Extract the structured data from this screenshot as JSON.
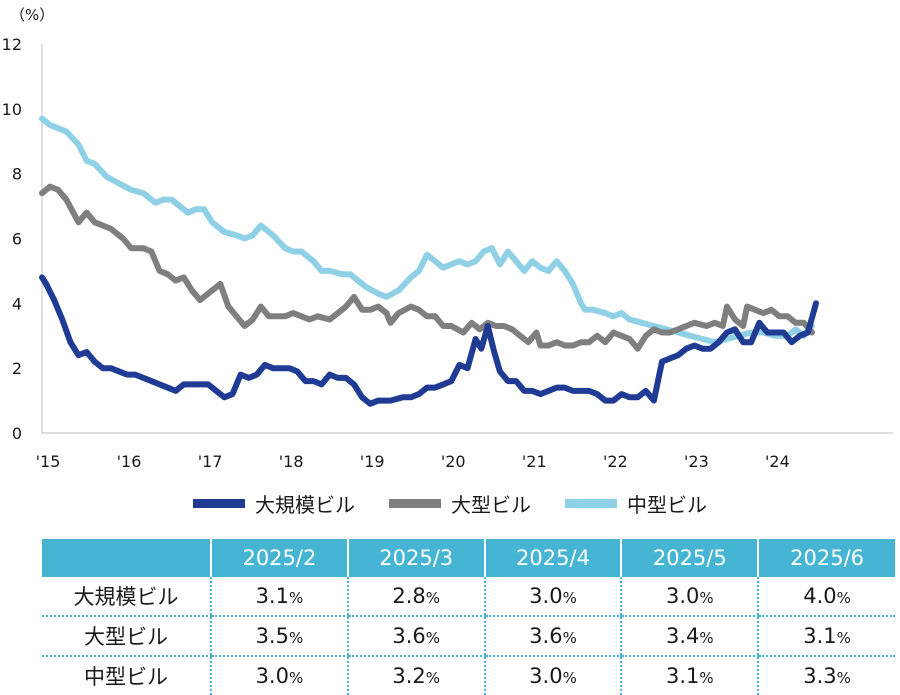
{
  "chart_data": {
    "type": "line",
    "unit_label": "（%）",
    "ylim": [
      0,
      12
    ],
    "yticks": [
      "0",
      "2",
      "4",
      "6",
      "8",
      "10",
      "12"
    ],
    "xlim": [
      2015.0,
      2025.5
    ],
    "xticks": [
      {
        "x": 2015,
        "label": "'15"
      },
      {
        "x": 2016,
        "label": "'16"
      },
      {
        "x": 2017,
        "label": "'17"
      },
      {
        "x": 2018,
        "label": "'18"
      },
      {
        "x": 2019,
        "label": "'19"
      },
      {
        "x": 2020,
        "label": "'20"
      },
      {
        "x": 2021,
        "label": "'21"
      },
      {
        "x": 2022,
        "label": "'22"
      },
      {
        "x": 2023,
        "label": "'23"
      },
      {
        "x": 2024,
        "label": "'24"
      }
    ],
    "series": [
      {
        "name": "中型ビル",
        "color": "#8fd0e6",
        "points": [
          [
            2015.0,
            9.7
          ],
          [
            2015.1,
            9.5
          ],
          [
            2015.3,
            9.3
          ],
          [
            2015.45,
            8.9
          ],
          [
            2015.55,
            8.4
          ],
          [
            2015.65,
            8.3
          ],
          [
            2015.8,
            7.9
          ],
          [
            2015.95,
            7.7
          ],
          [
            2016.1,
            7.5
          ],
          [
            2016.25,
            7.4
          ],
          [
            2016.4,
            7.1
          ],
          [
            2016.5,
            7.2
          ],
          [
            2016.6,
            7.2
          ],
          [
            2016.7,
            7.0
          ],
          [
            2016.8,
            6.8
          ],
          [
            2016.9,
            6.9
          ],
          [
            2017.0,
            6.9
          ],
          [
            2017.1,
            6.5
          ],
          [
            2017.25,
            6.2
          ],
          [
            2017.4,
            6.1
          ],
          [
            2017.5,
            6.0
          ],
          [
            2017.6,
            6.1
          ],
          [
            2017.7,
            6.4
          ],
          [
            2017.85,
            6.1
          ],
          [
            2018.0,
            5.7
          ],
          [
            2018.1,
            5.6
          ],
          [
            2018.2,
            5.6
          ],
          [
            2018.35,
            5.3
          ],
          [
            2018.45,
            5.0
          ],
          [
            2018.55,
            5.0
          ],
          [
            2018.7,
            4.9
          ],
          [
            2018.8,
            4.9
          ],
          [
            2018.9,
            4.7
          ],
          [
            2019.0,
            4.5
          ],
          [
            2019.15,
            4.3
          ],
          [
            2019.25,
            4.2
          ],
          [
            2019.4,
            4.4
          ],
          [
            2019.55,
            4.8
          ],
          [
            2019.65,
            5.0
          ],
          [
            2019.75,
            5.5
          ],
          [
            2019.85,
            5.3
          ],
          [
            2019.95,
            5.1
          ],
          [
            2020.05,
            5.2
          ],
          [
            2020.15,
            5.3
          ],
          [
            2020.25,
            5.2
          ],
          [
            2020.35,
            5.3
          ],
          [
            2020.45,
            5.6
          ],
          [
            2020.55,
            5.7
          ],
          [
            2020.65,
            5.2
          ],
          [
            2020.75,
            5.6
          ],
          [
            2020.85,
            5.3
          ],
          [
            2020.95,
            5.0
          ],
          [
            2021.05,
            5.3
          ],
          [
            2021.15,
            5.1
          ],
          [
            2021.25,
            5.0
          ],
          [
            2021.35,
            5.3
          ],
          [
            2021.45,
            5.0
          ],
          [
            2021.55,
            4.6
          ],
          [
            2021.65,
            4.0
          ],
          [
            2021.7,
            3.8
          ],
          [
            2021.8,
            3.8
          ],
          [
            2021.95,
            3.7
          ],
          [
            2022.05,
            3.6
          ],
          [
            2022.15,
            3.7
          ],
          [
            2022.25,
            3.5
          ],
          [
            2022.4,
            3.4
          ],
          [
            2022.55,
            3.3
          ],
          [
            2022.7,
            3.2
          ],
          [
            2022.85,
            3.1
          ],
          [
            2023.0,
            3.0
          ],
          [
            2023.15,
            2.9
          ],
          [
            2023.3,
            2.8
          ],
          [
            2023.45,
            2.9
          ],
          [
            2023.6,
            3.0
          ],
          [
            2023.75,
            3.1
          ],
          [
            2023.9,
            3.1
          ],
          [
            2024.05,
            3.0
          ],
          [
            2024.2,
            3.0
          ],
          [
            2024.3,
            3.2
          ],
          [
            2024.4,
            3.0
          ],
          [
            2024.5,
            3.3
          ]
        ]
      },
      {
        "name": "大型ビル",
        "color": "#7f7f7f",
        "points": [
          [
            2015.0,
            7.4
          ],
          [
            2015.1,
            7.6
          ],
          [
            2015.2,
            7.5
          ],
          [
            2015.3,
            7.2
          ],
          [
            2015.45,
            6.5
          ],
          [
            2015.55,
            6.8
          ],
          [
            2015.65,
            6.5
          ],
          [
            2015.75,
            6.4
          ],
          [
            2015.85,
            6.3
          ],
          [
            2016.0,
            6.0
          ],
          [
            2016.1,
            5.7
          ],
          [
            2016.25,
            5.7
          ],
          [
            2016.35,
            5.6
          ],
          [
            2016.45,
            5.0
          ],
          [
            2016.55,
            4.9
          ],
          [
            2016.65,
            4.7
          ],
          [
            2016.75,
            4.8
          ],
          [
            2016.85,
            4.4
          ],
          [
            2016.95,
            4.1
          ],
          [
            2017.05,
            4.3
          ],
          [
            2017.15,
            4.5
          ],
          [
            2017.2,
            4.6
          ],
          [
            2017.3,
            3.9
          ],
          [
            2017.4,
            3.6
          ],
          [
            2017.5,
            3.3
          ],
          [
            2017.6,
            3.5
          ],
          [
            2017.7,
            3.9
          ],
          [
            2017.8,
            3.6
          ],
          [
            2017.9,
            3.6
          ],
          [
            2018.0,
            3.6
          ],
          [
            2018.1,
            3.7
          ],
          [
            2018.2,
            3.6
          ],
          [
            2018.3,
            3.5
          ],
          [
            2018.4,
            3.6
          ],
          [
            2018.55,
            3.5
          ],
          [
            2018.65,
            3.7
          ],
          [
            2018.75,
            3.9
          ],
          [
            2018.85,
            4.2
          ],
          [
            2018.95,
            3.8
          ],
          [
            2019.05,
            3.8
          ],
          [
            2019.15,
            3.9
          ],
          [
            2019.25,
            3.7
          ],
          [
            2019.3,
            3.4
          ],
          [
            2019.4,
            3.7
          ],
          [
            2019.55,
            3.9
          ],
          [
            2019.65,
            3.8
          ],
          [
            2019.75,
            3.6
          ],
          [
            2019.85,
            3.6
          ],
          [
            2019.95,
            3.3
          ],
          [
            2020.05,
            3.3
          ],
          [
            2020.2,
            3.1
          ],
          [
            2020.3,
            3.4
          ],
          [
            2020.4,
            3.2
          ],
          [
            2020.5,
            3.4
          ],
          [
            2020.6,
            3.3
          ],
          [
            2020.7,
            3.3
          ],
          [
            2020.8,
            3.2
          ],
          [
            2020.9,
            3.0
          ],
          [
            2021.0,
            2.8
          ],
          [
            2021.1,
            3.1
          ],
          [
            2021.15,
            2.7
          ],
          [
            2021.25,
            2.7
          ],
          [
            2021.35,
            2.8
          ],
          [
            2021.45,
            2.7
          ],
          [
            2021.55,
            2.7
          ],
          [
            2021.65,
            2.8
          ],
          [
            2021.75,
            2.8
          ],
          [
            2021.85,
            3.0
          ],
          [
            2021.95,
            2.8
          ],
          [
            2022.05,
            3.1
          ],
          [
            2022.15,
            3.0
          ],
          [
            2022.25,
            2.9
          ],
          [
            2022.35,
            2.6
          ],
          [
            2022.45,
            3.0
          ],
          [
            2022.55,
            3.2
          ],
          [
            2022.65,
            3.1
          ],
          [
            2022.75,
            3.1
          ],
          [
            2022.85,
            3.2
          ],
          [
            2022.95,
            3.3
          ],
          [
            2023.05,
            3.4
          ],
          [
            2023.2,
            3.3
          ],
          [
            2023.3,
            3.4
          ],
          [
            2023.4,
            3.3
          ],
          [
            2023.45,
            3.9
          ],
          [
            2023.55,
            3.5
          ],
          [
            2023.65,
            3.3
          ],
          [
            2023.7,
            3.9
          ],
          [
            2023.8,
            3.8
          ],
          [
            2023.9,
            3.7
          ],
          [
            2024.0,
            3.8
          ],
          [
            2024.1,
            3.6
          ],
          [
            2024.2,
            3.6
          ],
          [
            2024.3,
            3.4
          ],
          [
            2024.4,
            3.4
          ],
          [
            2024.5,
            3.1
          ]
        ]
      },
      {
        "name": "大規模ビル",
        "color": "#1f3b93",
        "points": [
          [
            2015.0,
            4.8
          ],
          [
            2015.05,
            4.6
          ],
          [
            2015.15,
            4.1
          ],
          [
            2015.25,
            3.5
          ],
          [
            2015.35,
            2.8
          ],
          [
            2015.45,
            2.4
          ],
          [
            2015.55,
            2.5
          ],
          [
            2015.65,
            2.2
          ],
          [
            2015.75,
            2.0
          ],
          [
            2015.85,
            2.0
          ],
          [
            2015.95,
            1.9
          ],
          [
            2016.05,
            1.8
          ],
          [
            2016.15,
            1.8
          ],
          [
            2016.25,
            1.7
          ],
          [
            2016.35,
            1.6
          ],
          [
            2016.45,
            1.5
          ],
          [
            2016.55,
            1.4
          ],
          [
            2016.65,
            1.3
          ],
          [
            2016.75,
            1.5
          ],
          [
            2016.85,
            1.5
          ],
          [
            2016.95,
            1.5
          ],
          [
            2017.05,
            1.5
          ],
          [
            2017.15,
            1.3
          ],
          [
            2017.25,
            1.1
          ],
          [
            2017.35,
            1.2
          ],
          [
            2017.45,
            1.8
          ],
          [
            2017.55,
            1.7
          ],
          [
            2017.65,
            1.8
          ],
          [
            2017.75,
            2.1
          ],
          [
            2017.85,
            2.0
          ],
          [
            2017.95,
            2.0
          ],
          [
            2018.05,
            2.0
          ],
          [
            2018.15,
            1.9
          ],
          [
            2018.25,
            1.6
          ],
          [
            2018.35,
            1.6
          ],
          [
            2018.45,
            1.5
          ],
          [
            2018.55,
            1.8
          ],
          [
            2018.65,
            1.7
          ],
          [
            2018.75,
            1.7
          ],
          [
            2018.85,
            1.5
          ],
          [
            2018.95,
            1.1
          ],
          [
            2019.05,
            0.9
          ],
          [
            2019.15,
            1.0
          ],
          [
            2019.3,
            1.0
          ],
          [
            2019.45,
            1.1
          ],
          [
            2019.55,
            1.1
          ],
          [
            2019.65,
            1.2
          ],
          [
            2019.75,
            1.4
          ],
          [
            2019.85,
            1.4
          ],
          [
            2019.95,
            1.5
          ],
          [
            2020.05,
            1.6
          ],
          [
            2020.15,
            2.1
          ],
          [
            2020.25,
            2.0
          ],
          [
            2020.35,
            2.9
          ],
          [
            2020.42,
            2.6
          ],
          [
            2020.5,
            3.3
          ],
          [
            2020.58,
            2.5
          ],
          [
            2020.65,
            1.9
          ],
          [
            2020.75,
            1.6
          ],
          [
            2020.85,
            1.6
          ],
          [
            2020.95,
            1.3
          ],
          [
            2021.05,
            1.3
          ],
          [
            2021.15,
            1.2
          ],
          [
            2021.25,
            1.3
          ],
          [
            2021.35,
            1.4
          ],
          [
            2021.45,
            1.4
          ],
          [
            2021.55,
            1.3
          ],
          [
            2021.65,
            1.3
          ],
          [
            2021.75,
            1.3
          ],
          [
            2021.85,
            1.2
          ],
          [
            2021.95,
            1.0
          ],
          [
            2022.05,
            1.0
          ],
          [
            2022.15,
            1.2
          ],
          [
            2022.25,
            1.1
          ],
          [
            2022.35,
            1.1
          ],
          [
            2022.45,
            1.3
          ],
          [
            2022.55,
            1.0
          ],
          [
            2022.65,
            2.2
          ],
          [
            2022.75,
            2.3
          ],
          [
            2022.85,
            2.4
          ],
          [
            2022.95,
            2.6
          ],
          [
            2023.05,
            2.7
          ],
          [
            2023.15,
            2.6
          ],
          [
            2023.25,
            2.6
          ],
          [
            2023.35,
            2.8
          ],
          [
            2023.45,
            3.1
          ],
          [
            2023.55,
            3.2
          ],
          [
            2023.65,
            2.8
          ],
          [
            2023.75,
            2.8
          ],
          [
            2023.85,
            3.4
          ],
          [
            2023.95,
            3.1
          ],
          [
            2024.05,
            3.1
          ],
          [
            2024.15,
            3.1
          ],
          [
            2024.25,
            2.8
          ],
          [
            2024.35,
            3.0
          ],
          [
            2024.45,
            3.1
          ],
          [
            2024.55,
            4.0
          ]
        ]
      }
    ]
  },
  "legend": {
    "items": [
      {
        "label": "大規模ビル",
        "color": "#1f3b93"
      },
      {
        "label": "大型ビル",
        "color": "#7f7f7f"
      },
      {
        "label": "中型ビル",
        "color": "#8fd0e6"
      }
    ]
  },
  "table": {
    "columns": [
      "2025/2",
      "2025/3",
      "2025/4",
      "2025/5",
      "2025/6"
    ],
    "rows": [
      {
        "label": "大規模ビル",
        "values": [
          "3.1",
          "2.8",
          "3.0",
          "3.0",
          "4.0"
        ]
      },
      {
        "label": "大型ビル",
        "values": [
          "3.5",
          "3.6",
          "3.6",
          "3.4",
          "3.1"
        ]
      },
      {
        "label": "中型ビル",
        "values": [
          "3.0",
          "3.2",
          "3.0",
          "3.1",
          "3.3"
        ]
      }
    ],
    "unit": "%"
  }
}
